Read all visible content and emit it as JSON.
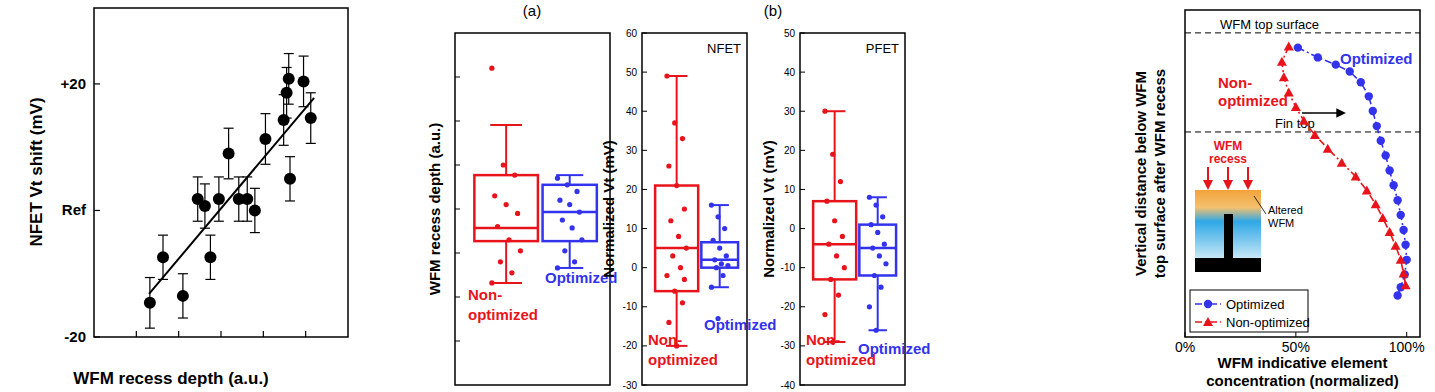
{
  "chart_data": [
    {
      "type": "scatter",
      "y_label": "NFET Vt shift (mV)",
      "x_label": "WFM recess depth (a.u.)",
      "xlim": [
        0,
        6
      ],
      "xticks": [
        1,
        2,
        3,
        4,
        5
      ],
      "ylim": [
        -20,
        32
      ],
      "yticks": [
        {
          "value": 20,
          "label": "+20"
        },
        {
          "value": 0,
          "label": "Ref"
        },
        -20
      ],
      "tick_labels": "y",
      "series": [
        {
          "color": "#000000",
          "marker": "circle",
          "x": [
            1.32,
            1.63,
            2.1,
            2.45,
            2.62,
            2.75,
            2.95,
            3.18,
            3.42,
            3.62,
            3.8,
            4.05,
            4.48,
            4.55,
            4.6,
            4.63,
            4.95,
            5.12
          ],
          "values": [
            -14.6,
            -7.4,
            -13.5,
            1.8,
            0.7,
            -7.4,
            1.8,
            9.0,
            1.8,
            1.8,
            0.0,
            11.3,
            14.3,
            18.6,
            20.8,
            5.0,
            20.4,
            14.6
          ],
          "errors": [
            4,
            3.5,
            3.5,
            3.5,
            3.5,
            3.5,
            3.5,
            4,
            3.5,
            3.5,
            3.5,
            4,
            4,
            4,
            4,
            3.5,
            4,
            4
          ]
        },
        {
          "type": "line",
          "color": "#000000",
          "x": [
            1.3,
            5.2
          ],
          "values": [
            -13.2,
            17.8
          ]
        }
      ]
    },
    {
      "type": "box",
      "panel_label": "(a)",
      "y_label": "WFM recess depth (a.u.)",
      "ylim": [
        0,
        8
      ],
      "yticks": [
        1,
        2,
        3,
        4,
        5,
        6,
        7
      ],
      "tick_labels": false,
      "series": [
        {
          "name": "Non-optimized",
          "color": "#e8141b",
          "whisker_low": 2.32,
          "q1": 3.27,
          "median": 3.57,
          "q3": 4.77,
          "whisker_high": 5.91,
          "points": [
            7.2,
            5.0,
            4.77,
            4.3,
            4.1,
            3.9,
            3.6,
            3.3,
            3.05,
            2.8,
            2.55,
            2.32
          ]
        },
        {
          "name": "Optimized",
          "color": "#3333ee",
          "whisker_low": 2.66,
          "q1": 3.27,
          "median": 3.93,
          "q3": 4.55,
          "whisker_high": 4.77,
          "points": [
            4.7,
            4.55,
            4.4,
            4.2,
            4.1,
            3.93,
            3.75,
            3.57,
            3.3,
            3.05,
            2.8,
            2.66
          ]
        }
      ]
    },
    {
      "type": "box",
      "panel_label": "(b)",
      "title": "NFET",
      "y_label": "Normalized Vt (mV)",
      "ylim": [
        -30,
        60
      ],
      "yticks": [
        -30,
        -20,
        -10,
        0,
        10,
        20,
        30,
        40,
        50,
        60
      ],
      "series": [
        {
          "name": "Non-optimized",
          "color": "#e8141b",
          "whisker_low": -20,
          "q1": -6,
          "median": 5,
          "q3": 21,
          "whisker_high": 49,
          "points": [
            49,
            37,
            33,
            26,
            21,
            15,
            12,
            8,
            5,
            3,
            0,
            -2,
            -6,
            -9,
            -14,
            -20,
            -3
          ]
        },
        {
          "name": "Optimized",
          "color": "#3333ee",
          "whisker_low": -5,
          "q1": 0,
          "median": 2,
          "q3": 6.5,
          "whisker_high": 16,
          "points": [
            16,
            13,
            10,
            7,
            5,
            3,
            2,
            1,
            0.5,
            0,
            -2,
            -5,
            -13
          ]
        }
      ]
    },
    {
      "type": "box",
      "title": "PFET",
      "y_label": "Normalized Vt (mV)",
      "ylim": [
        -40,
        50
      ],
      "yticks": [
        -40,
        -30,
        -20,
        -10,
        0,
        10,
        20,
        30,
        40,
        50
      ],
      "series": [
        {
          "name": "Non-optimized",
          "color": "#e8141b",
          "whisker_low": -29,
          "q1": -13,
          "median": -4,
          "q3": 7,
          "whisker_high": 30,
          "points": [
            30,
            19,
            12,
            7,
            2,
            -2,
            -4,
            -7,
            -10,
            -13,
            -17,
            -22,
            -29
          ]
        },
        {
          "name": "Optimized",
          "color": "#3333ee",
          "whisker_low": -26,
          "q1": -12,
          "median": -5,
          "q3": 1,
          "whisker_high": 8,
          "points": [
            8,
            6,
            3,
            1,
            -1,
            -4,
            -5,
            -7,
            -9,
            -12,
            -15,
            -20,
            -26
          ]
        }
      ]
    },
    {
      "type": "line",
      "x_label": "WFM indicative element concentration (normalized)",
      "y_label": "Vertical distance below WFM top surface after WFM recess",
      "xlim": [
        0,
        106
      ],
      "xticks": [
        {
          "value": 0,
          "label": "0%"
        },
        {
          "value": 50,
          "label": "50%"
        },
        {
          "value": 100,
          "label": "100%"
        }
      ],
      "ylim": [
        10,
        0
      ],
      "tick_labels": "x",
      "legend": "bottom-left",
      "hlines": [
        {
          "value": 0.7,
          "label": "WFM top surface"
        },
        {
          "value": 3.73,
          "label": "Fin top"
        }
      ],
      "annotations": [
        "Non-optimized",
        "Optimized"
      ],
      "inset": {
        "labels": [
          "WFM recess",
          "Altered WFM"
        ]
      },
      "series": [
        {
          "name": "Optimized",
          "color": "#3333ee",
          "marker": "circle",
          "line_style": "dashdot",
          "x": [
            50.9,
            59.9,
            68.0,
            74.3,
            79.3,
            82.9,
            84.7,
            86.5,
            88.3,
            90.5,
            92.3,
            94.1,
            95.9,
            97.3,
            98.6,
            99.5,
            100.0,
            99.1,
            97.3,
            95.9
          ],
          "values": [
            1.15,
            1.45,
            1.67,
            1.88,
            2.21,
            2.64,
            3.09,
            3.55,
            4.0,
            4.45,
            4.91,
            5.36,
            5.82,
            6.27,
            6.73,
            7.18,
            7.64,
            8.09,
            8.48,
            8.73
          ]
        },
        {
          "name": "Non-optimized",
          "color": "#e8141b",
          "marker": "triangle",
          "line_style": "dashdot",
          "x": [
            46.8,
            43.7,
            44.6,
            46.8,
            50.0,
            53.6,
            58.6,
            64.4,
            70.7,
            77.0,
            82.0,
            86.0,
            89.2,
            92.3,
            95.0,
            97.3,
            98.6,
            99.5
          ],
          "values": [
            1.12,
            1.58,
            2.06,
            2.52,
            2.97,
            3.39,
            3.82,
            4.24,
            4.67,
            5.09,
            5.52,
            5.94,
            6.36,
            6.79,
            7.21,
            7.64,
            8.06,
            8.42
          ]
        }
      ]
    }
  ]
}
